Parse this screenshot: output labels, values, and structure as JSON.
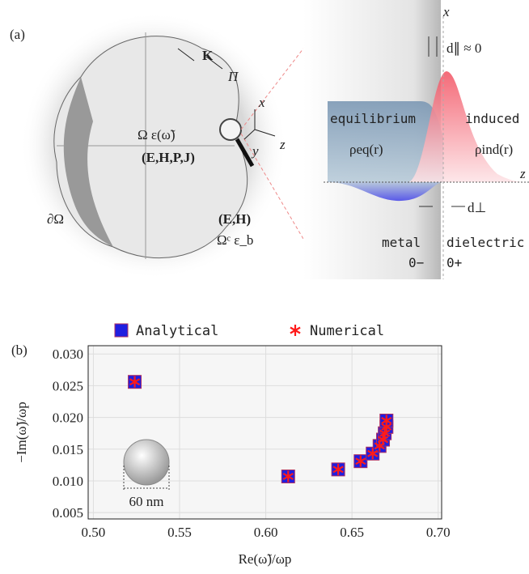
{
  "panel_a": {
    "label": "(a)",
    "k_label": "K",
    "pi_label": "Π",
    "omega_label": "Ω ε(ω̃)",
    "fields_inside": "(E,H,P,J)",
    "boundary": "∂Ω",
    "fields_outside": "(E,H)",
    "omega_c": "Ωᶜ ε_b",
    "axis_x": "x",
    "axis_y": "y",
    "axis_z": "z",
    "zoom_x": "x",
    "zoom_z": "z",
    "d_parallel": "d∥ ≈ 0",
    "equilibrium": "equilibrium",
    "rho_eq": "ρeq(r)",
    "induced": "induced",
    "rho_ind": "ρind(r)",
    "d_perp": "d⊥",
    "metal": "metal",
    "dielectric": "dielectric",
    "zero_minus": "0−",
    "zero_plus": "0+"
  },
  "chart_data": {
    "type": "scatter",
    "panel_label": "(b)",
    "x_label": "Re(ω̃)/ωp",
    "y_label": "−Im(ω̃)/ωp",
    "inset_label": "60 nm",
    "x": [
      0.524,
      0.613,
      0.642,
      0.655,
      0.662,
      0.666,
      0.668,
      0.669,
      0.67,
      0.67
    ],
    "series": [
      {
        "name": "Analytical",
        "color": "#1f1fe0",
        "marker": "square",
        "values": [
          0.0256,
          0.0107,
          0.0118,
          0.0131,
          0.0143,
          0.0155,
          0.0165,
          0.0175,
          0.0185,
          0.0195
        ]
      },
      {
        "name": "Numerical",
        "color": "#ff1a1a",
        "marker": "asterisk",
        "values": [
          0.0256,
          0.0107,
          0.0118,
          0.0131,
          0.0143,
          0.0155,
          0.0165,
          0.0175,
          0.0185,
          0.0195
        ]
      }
    ],
    "xlim": [
      0.497,
      0.702
    ],
    "xticks": [
      {
        "value": 0.5,
        "label": "0.50"
      },
      0.55,
      {
        "value": 0.6,
        "label": "0.60"
      },
      0.65,
      {
        "value": 0.7,
        "label": "0.70"
      }
    ],
    "ylim": [
      0.004,
      0.0313
    ],
    "yticks": [
      0.005,
      {
        "value": 0.01,
        "label": "0.010"
      },
      0.015,
      {
        "value": 0.02,
        "label": "0.020"
      },
      0.025,
      {
        "value": 0.03,
        "label": "0.030"
      }
    ],
    "grid": true,
    "legend": "top"
  }
}
